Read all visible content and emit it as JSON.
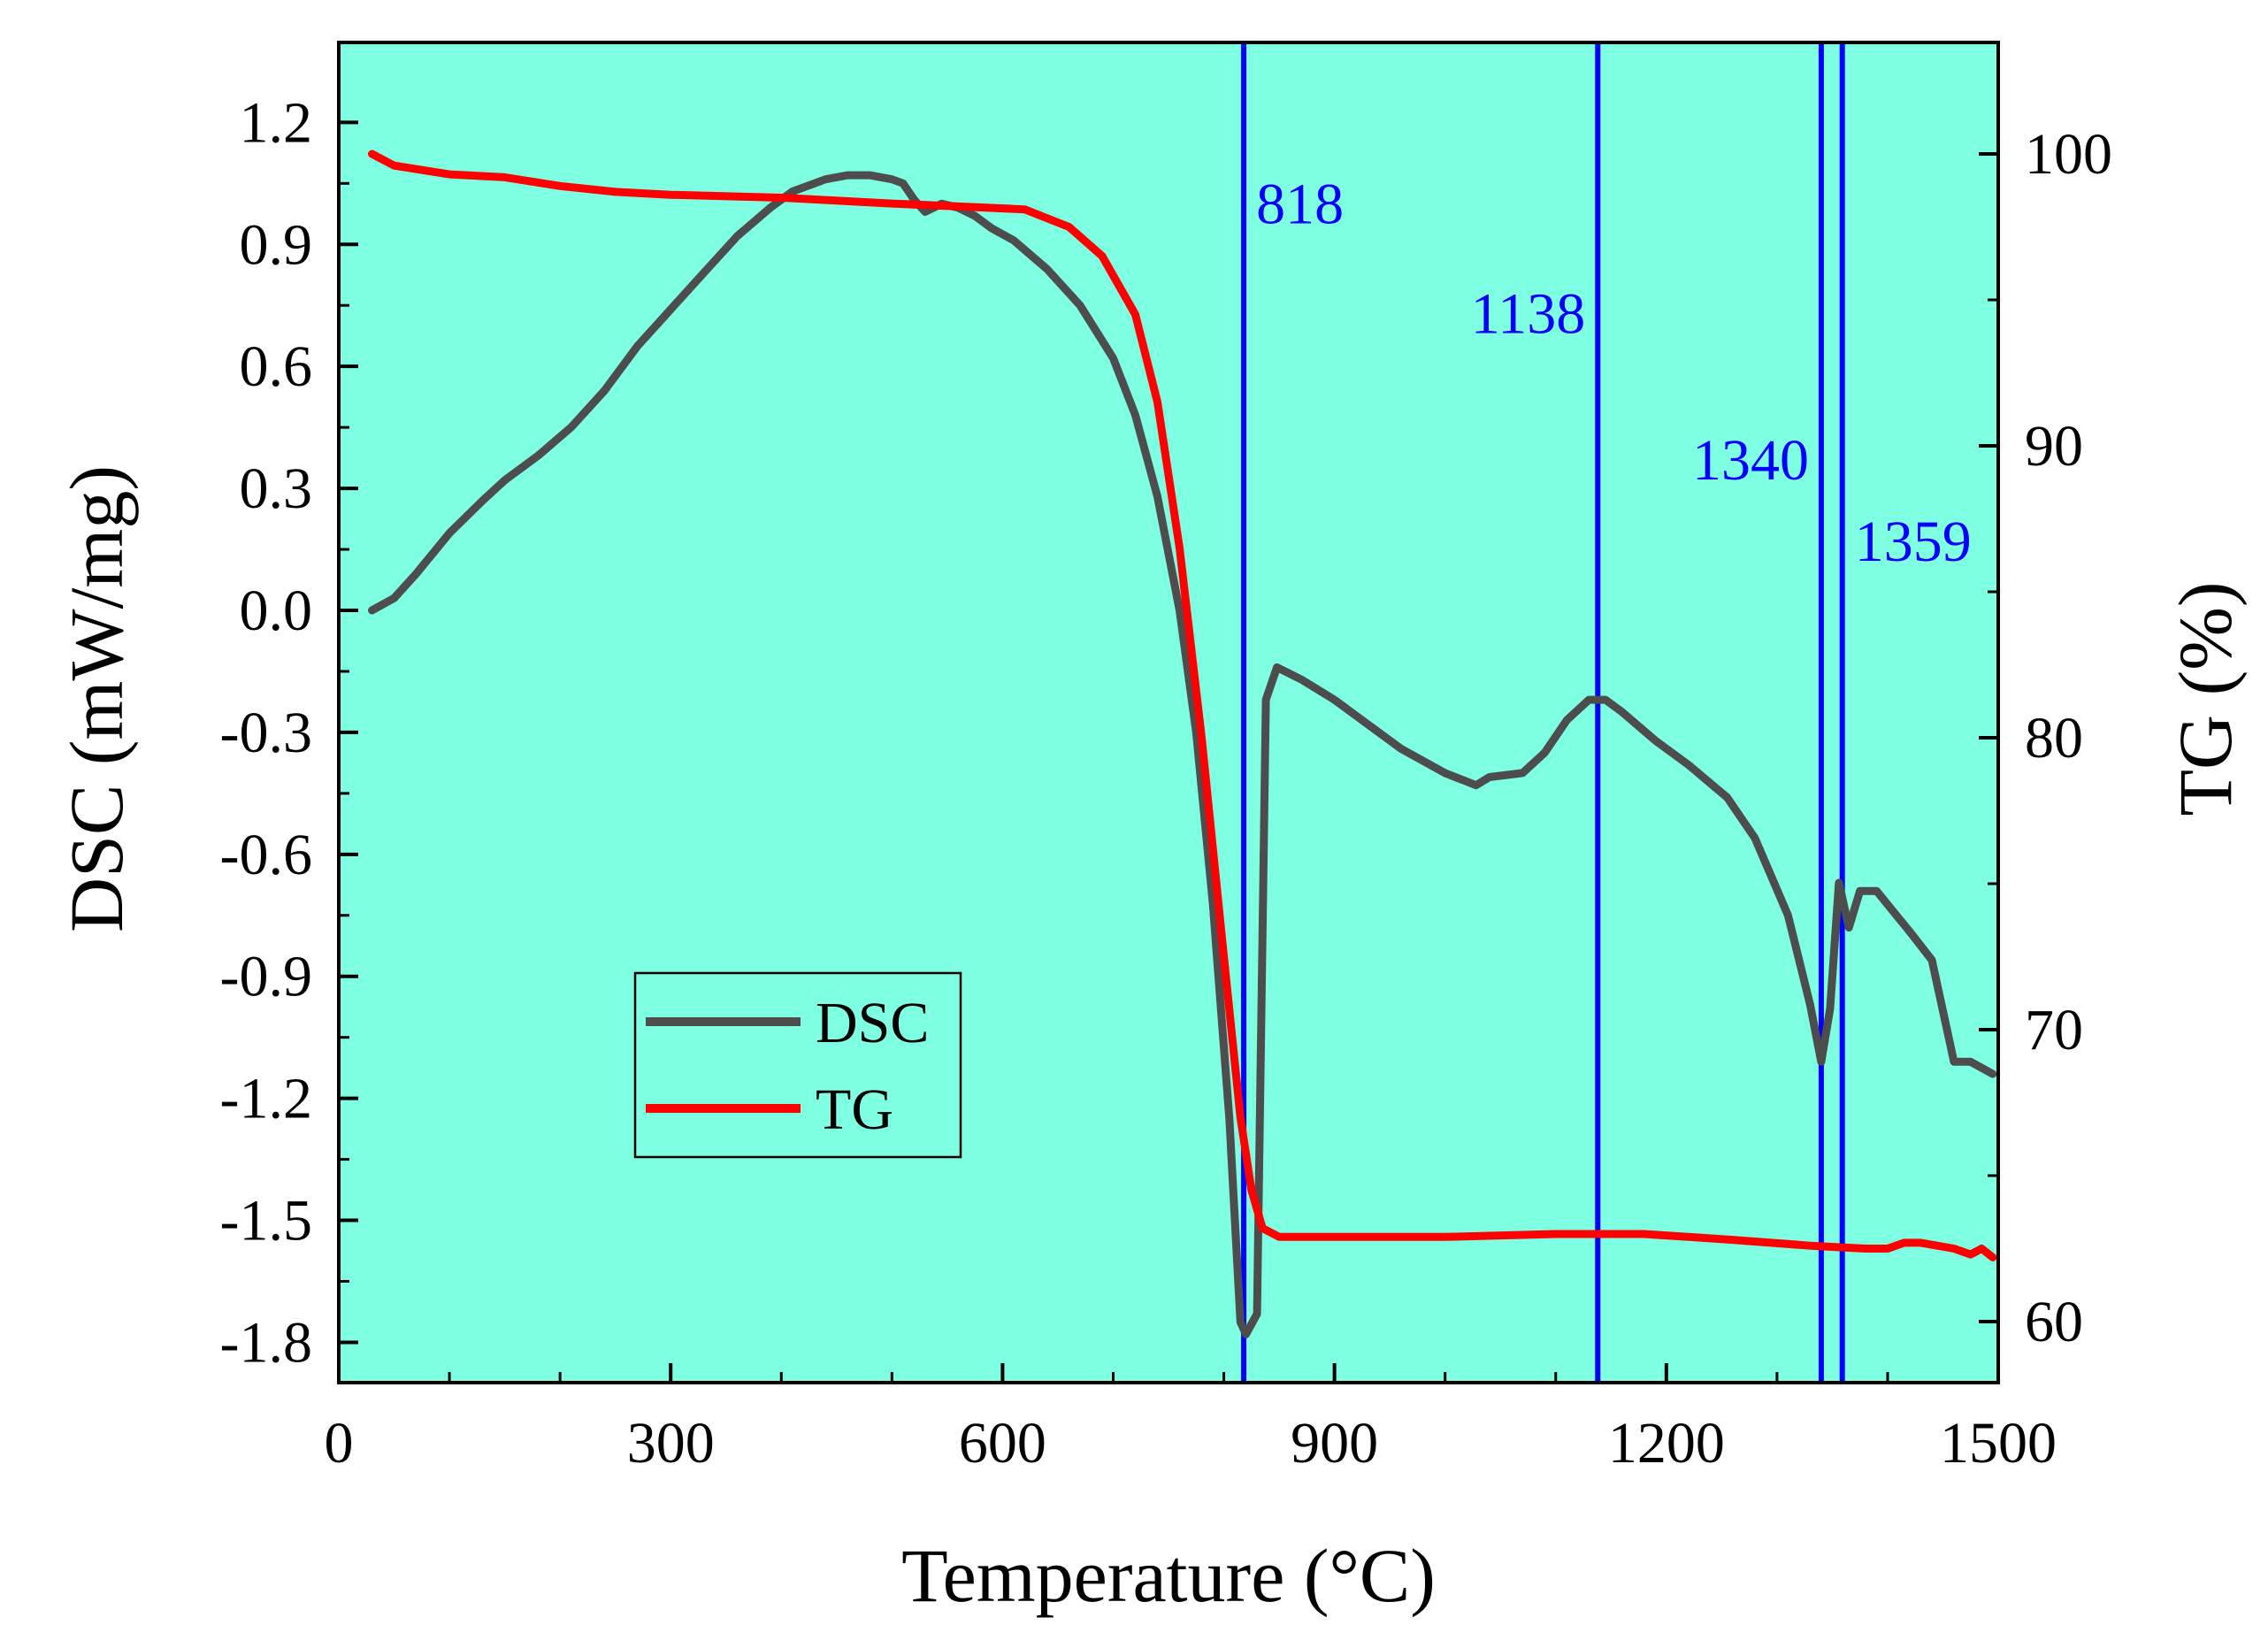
{
  "chart_data": {
    "type": "line",
    "background": "#7fffe2",
    "xlabel": "Temperature (°C)",
    "ylabel_left": "DSC (mW/mg)",
    "ylabel_right": "TG (%)",
    "xlim": [
      0,
      1500
    ],
    "ylim_left": [
      -1.9,
      1.4
    ],
    "ylim_right": [
      58,
      104
    ],
    "x_ticks": [
      {
        "value": 0,
        "label": "0"
      },
      {
        "value": 300,
        "label": "300"
      },
      {
        "value": 600,
        "label": "600"
      },
      {
        "value": 900,
        "label": "900"
      },
      {
        "value": 1200,
        "label": "1200"
      },
      {
        "value": 1500,
        "label": "1500"
      }
    ],
    "y_left_ticks": [
      {
        "value": 1.2,
        "label": "1.2"
      },
      {
        "value": 0.9,
        "label": "0.9"
      },
      {
        "value": 0.6,
        "label": "0.6"
      },
      {
        "value": 0.3,
        "label": "0.3"
      },
      {
        "value": 0.0,
        "label": "0.0"
      },
      {
        "value": -0.3,
        "label": "-0.3"
      },
      {
        "value": -0.6,
        "label": "-0.6"
      },
      {
        "value": -0.9,
        "label": "-0.9"
      },
      {
        "value": -1.2,
        "label": "-1.2"
      },
      {
        "value": -1.5,
        "label": "-1.5"
      },
      {
        "value": -1.8,
        "label": "-1.8"
      }
    ],
    "y_right_ticks": [
      {
        "value": 100,
        "label": "100"
      },
      {
        "value": 90,
        "label": "90"
      },
      {
        "value": 80,
        "label": "80"
      },
      {
        "value": 70,
        "label": "70"
      },
      {
        "value": 60,
        "label": "60"
      }
    ],
    "series": [
      {
        "name": "DSC",
        "axis": "left",
        "color": "#4d4d4d",
        "points": [
          [
            30,
            0.0
          ],
          [
            50,
            0.03
          ],
          [
            70,
            0.09
          ],
          [
            100,
            0.19
          ],
          [
            130,
            0.27
          ],
          [
            150,
            0.32
          ],
          [
            180,
            0.38
          ],
          [
            210,
            0.45
          ],
          [
            240,
            0.54
          ],
          [
            270,
            0.65
          ],
          [
            300,
            0.74
          ],
          [
            330,
            0.83
          ],
          [
            360,
            0.92
          ],
          [
            390,
            0.99
          ],
          [
            410,
            1.03
          ],
          [
            440,
            1.06
          ],
          [
            460,
            1.07
          ],
          [
            480,
            1.07
          ],
          [
            500,
            1.06
          ],
          [
            510,
            1.05
          ],
          [
            520,
            1.01
          ],
          [
            530,
            0.98
          ],
          [
            545,
            1.0
          ],
          [
            560,
            0.99
          ],
          [
            575,
            0.97
          ],
          [
            590,
            0.94
          ],
          [
            610,
            0.91
          ],
          [
            640,
            0.84
          ],
          [
            670,
            0.75
          ],
          [
            700,
            0.62
          ],
          [
            720,
            0.48
          ],
          [
            740,
            0.28
          ],
          [
            760,
            0.0
          ],
          [
            775,
            -0.3
          ],
          [
            790,
            -0.72
          ],
          [
            805,
            -1.25
          ],
          [
            815,
            -1.75
          ],
          [
            820,
            -1.78
          ],
          [
            830,
            -1.73
          ],
          [
            838,
            -0.22
          ],
          [
            848,
            -0.14
          ],
          [
            870,
            -0.17
          ],
          [
            900,
            -0.22
          ],
          [
            930,
            -0.28
          ],
          [
            960,
            -0.34
          ],
          [
            1000,
            -0.4
          ],
          [
            1028,
            -0.43
          ],
          [
            1040,
            -0.41
          ],
          [
            1070,
            -0.4
          ],
          [
            1090,
            -0.35
          ],
          [
            1110,
            -0.27
          ],
          [
            1130,
            -0.22
          ],
          [
            1145,
            -0.22
          ],
          [
            1160,
            -0.25
          ],
          [
            1190,
            -0.32
          ],
          [
            1220,
            -0.38
          ],
          [
            1255,
            -0.46
          ],
          [
            1280,
            -0.56
          ],
          [
            1310,
            -0.75
          ],
          [
            1330,
            -0.97
          ],
          [
            1340,
            -1.11
          ],
          [
            1348,
            -0.98
          ],
          [
            1356,
            -0.67
          ],
          [
            1365,
            -0.78
          ],
          [
            1375,
            -0.69
          ],
          [
            1390,
            -0.69
          ],
          [
            1405,
            -0.74
          ],
          [
            1420,
            -0.79
          ],
          [
            1440,
            -0.86
          ],
          [
            1460,
            -1.11
          ],
          [
            1475,
            -1.11
          ],
          [
            1495,
            -1.14
          ]
        ]
      },
      {
        "name": "TG",
        "axis": "right",
        "color": "#ff0000",
        "points": [
          [
            30,
            100.0
          ],
          [
            50,
            99.6
          ],
          [
            100,
            99.3
          ],
          [
            150,
            99.2
          ],
          [
            200,
            98.9
          ],
          [
            250,
            98.7
          ],
          [
            300,
            98.6
          ],
          [
            400,
            98.5
          ],
          [
            500,
            98.3
          ],
          [
            560,
            98.2
          ],
          [
            620,
            98.1
          ],
          [
            660,
            97.5
          ],
          [
            690,
            96.5
          ],
          [
            720,
            94.5
          ],
          [
            740,
            91.5
          ],
          [
            760,
            86.5
          ],
          [
            780,
            80.0
          ],
          [
            800,
            72.5
          ],
          [
            815,
            67.0
          ],
          [
            825,
            64.5
          ],
          [
            835,
            63.2
          ],
          [
            850,
            62.9
          ],
          [
            900,
            62.9
          ],
          [
            1000,
            62.9
          ],
          [
            1100,
            63.0
          ],
          [
            1180,
            63.0
          ],
          [
            1260,
            62.8
          ],
          [
            1330,
            62.6
          ],
          [
            1380,
            62.5
          ],
          [
            1400,
            62.5
          ],
          [
            1415,
            62.7
          ],
          [
            1430,
            62.7
          ],
          [
            1460,
            62.5
          ],
          [
            1475,
            62.3
          ],
          [
            1485,
            62.5
          ],
          [
            1495,
            62.2
          ]
        ]
      }
    ],
    "vertical_lines": [
      {
        "x": 818,
        "label": "818",
        "label_y_left": 1.0,
        "anchor": "start",
        "color": "#0000ff"
      },
      {
        "x": 1138,
        "label": "1138",
        "label_y_left": 0.73,
        "anchor": "end",
        "color": "#0000ff"
      },
      {
        "x": 1340,
        "label": "1340",
        "label_y_left": 0.37,
        "anchor": "end",
        "color": "#0000ff"
      },
      {
        "x": 1359,
        "label": "1359",
        "label_y_left": 0.17,
        "anchor": "start",
        "color": "#0000ff"
      }
    ],
    "legend": {
      "position": "lower-left",
      "entries": [
        {
          "label": "DSC",
          "color": "#4d4d4d"
        },
        {
          "label": "TG",
          "color": "#ff0000"
        }
      ]
    }
  }
}
